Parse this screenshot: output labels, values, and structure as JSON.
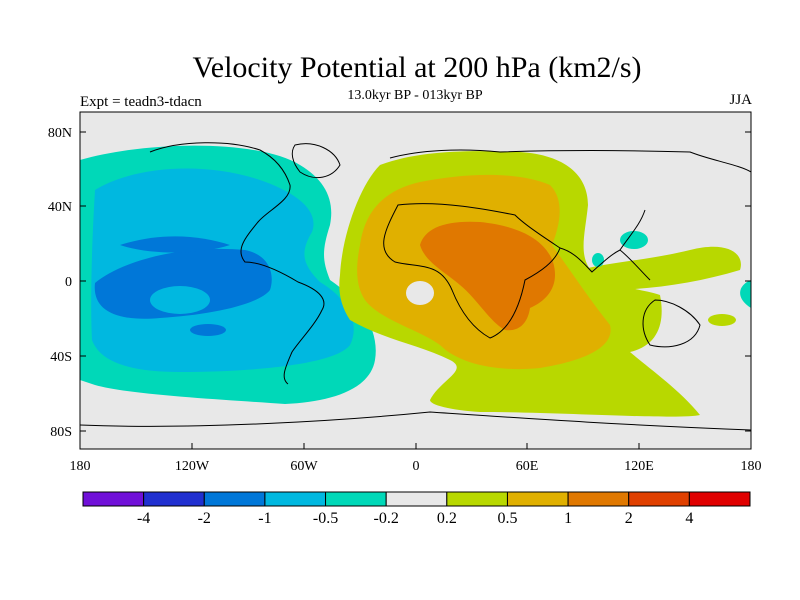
{
  "header": {
    "title": "Velocity Potential at 200 hPa (km2/s)",
    "subtitle": "13.0kyr BP - 013kyr BP",
    "left_label": "Expt = teadn3-tdacn",
    "right_label": "JJA"
  },
  "map": {
    "lat_ticks": [
      "80N",
      "40N",
      "0",
      "40S",
      "80S"
    ],
    "lon_ticks": [
      "180",
      "120W",
      "60W",
      "0",
      "60E",
      "120E",
      "180"
    ],
    "fill_colors": {
      "neg_0.5_to_1": "#00b8e0",
      "neg_1_to_2": "#0077d8",
      "neg_0.2_to_0.5": "#00d8b8",
      "neutral": "#e8e8e8",
      "pos_0.2_to_0.5": "#b8d800",
      "pos_0.5_to_1": "#e0b000",
      "pos_1_to_2": "#e07800"
    }
  },
  "colorbar": {
    "colors": [
      "#7010d8",
      "#2030d0",
      "#0077d8",
      "#00b8e0",
      "#00d8b8",
      "#e8e8e8",
      "#b8d800",
      "#e0b000",
      "#e07800",
      "#e04000",
      "#e00000"
    ],
    "labels": [
      "-4",
      "-2",
      "-1",
      "-0.5",
      "-0.2",
      "0.2",
      "0.5",
      "1",
      "2",
      "4"
    ]
  }
}
